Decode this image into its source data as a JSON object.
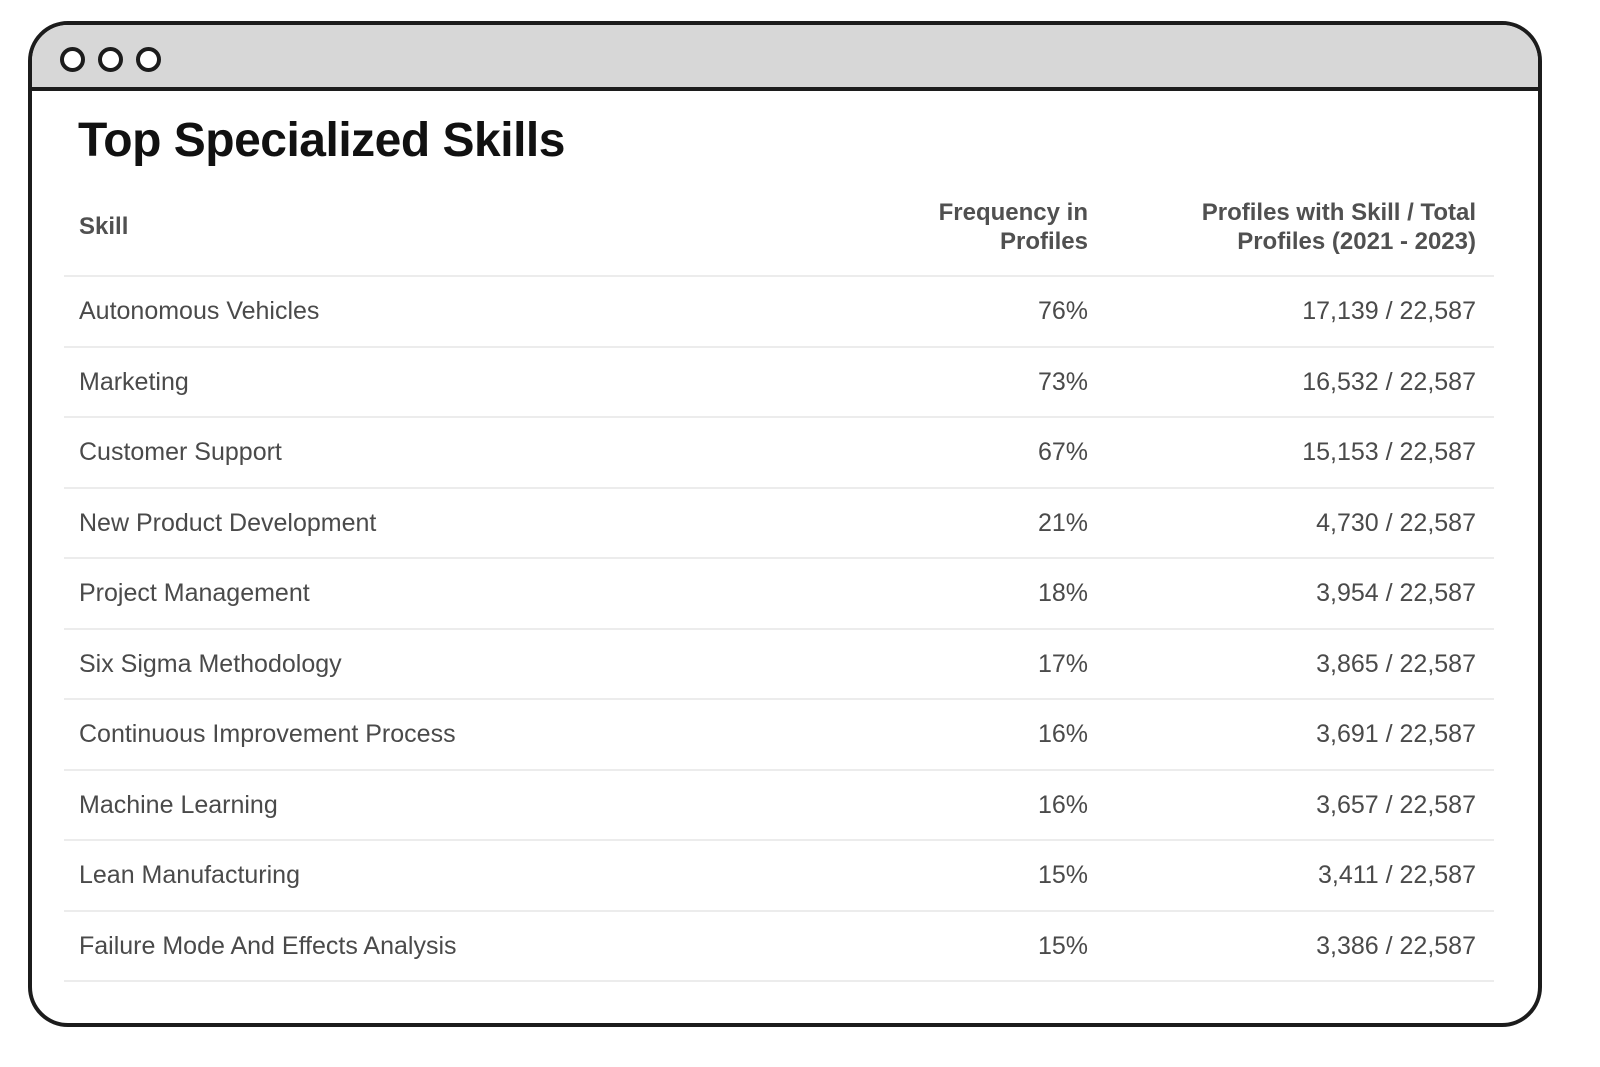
{
  "page_title": "Top Specialized Skills",
  "table": {
    "headers": {
      "skill": "Skill",
      "frequency": "Frequency in Profiles",
      "profiles": "Profiles with Skill / Total Profiles (2021 - 2023)"
    },
    "rows": [
      {
        "skill": "Autonomous Vehicles",
        "frequency": "76%",
        "profiles": "17,139 / 22,587"
      },
      {
        "skill": "Marketing",
        "frequency": "73%",
        "profiles": "16,532 / 22,587"
      },
      {
        "skill": "Customer Support",
        "frequency": "67%",
        "profiles": "15,153 / 22,587"
      },
      {
        "skill": "New Product Development",
        "frequency": "21%",
        "profiles": "4,730 / 22,587"
      },
      {
        "skill": "Project Management",
        "frequency": "18%",
        "profiles": "3,954 / 22,587"
      },
      {
        "skill": "Six Sigma Methodology",
        "frequency": "17%",
        "profiles": "3,865 / 22,587"
      },
      {
        "skill": "Continuous Improvement Process",
        "frequency": "16%",
        "profiles": "3,691 / 22,587"
      },
      {
        "skill": "Machine Learning",
        "frequency": "16%",
        "profiles": "3,657 / 22,587"
      },
      {
        "skill": "Lean Manufacturing",
        "frequency": "15%",
        "profiles": "3,411 / 22,587"
      },
      {
        "skill": "Failure Mode And Effects Analysis",
        "frequency": "15%",
        "profiles": "3,386 / 22,587"
      }
    ]
  },
  "colors": {
    "window_border": "#1c1c1c",
    "titlebar": "#d7d7d7",
    "text": "#4a4a4a",
    "divider": "#ececec"
  },
  "icons": {
    "window_controls": [
      "window-dot-icon",
      "window-dot-icon",
      "window-dot-icon"
    ]
  }
}
